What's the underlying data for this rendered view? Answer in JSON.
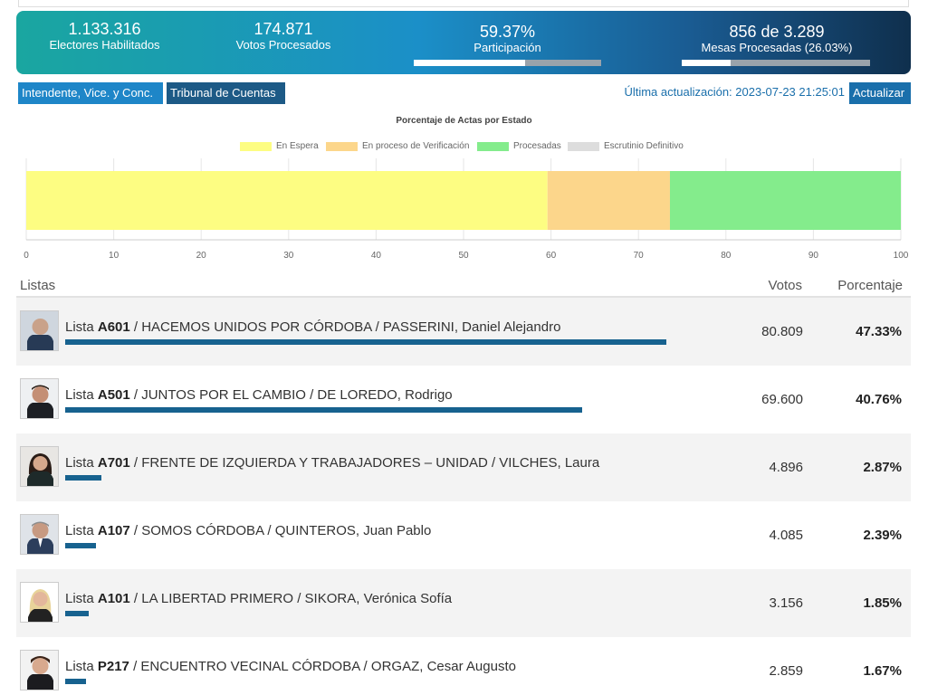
{
  "summary": {
    "electores": {
      "value": "1.133.316",
      "label": "Electores Habilitados"
    },
    "votos": {
      "value": "174.871",
      "label": "Votos Procesados"
    },
    "participacion": {
      "value": "59.37%",
      "label": "Participación",
      "progress": 0.5937
    },
    "mesas": {
      "value": "856 de 3.289",
      "label": "Mesas Procesadas (26.03%)",
      "progress": 0.2603
    }
  },
  "toolbar": {
    "tab_intendente": "Intendente, Vice. y Conc.",
    "tab_tribunal": "Tribunal de Cuentas",
    "updated_text": "Última actualización: 2023-07-23 21:25:01",
    "refresh_label": "Actualizar"
  },
  "chart_data": {
    "type": "bar",
    "orientation": "horizontal-stacked",
    "title": "Porcentaje de Actas por Estado",
    "xlim": [
      0,
      100
    ],
    "ticks": [
      "0",
      "10",
      "20",
      "30",
      "40",
      "50",
      "60",
      "70",
      "80",
      "90",
      "100"
    ],
    "legend_position": "top",
    "series": [
      {
        "name": "En Espera",
        "values": [
          59.6
        ],
        "color": "#fdfd82"
      },
      {
        "name": "En proceso de Verificación",
        "values": [
          14.0
        ],
        "color": "#fcd68b"
      },
      {
        "name": "Procesadas",
        "values": [
          26.4
        ],
        "color": "#84ec8c"
      },
      {
        "name": "Escrutinio Definitivo",
        "values": [
          0
        ],
        "color": "#dddddd"
      }
    ]
  },
  "table": {
    "col_listas": "Listas",
    "col_votos": "Votos",
    "col_porcentaje": "Porcentaje",
    "bar_color": "#17628f",
    "rows": [
      {
        "prefix": "Lista",
        "code": "A601",
        "rest": " / HACEMOS UNIDOS POR CÓRDOBA / PASSERINI, Daniel Alejandro",
        "votos": "80.809",
        "pct": "47.33%",
        "share": 0.4733
      },
      {
        "prefix": "Lista",
        "code": "A501",
        "rest": " / JUNTOS POR EL CAMBIO / DE LOREDO, Rodrigo",
        "votos": "69.600",
        "pct": "40.76%",
        "share": 0.4076
      },
      {
        "prefix": "Lista",
        "code": "A701",
        "rest": " / FRENTE DE IZQUIERDA Y TRABAJADORES – UNIDAD / VILCHES, Laura",
        "votos": "4.896",
        "pct": "2.87%",
        "share": 0.0287
      },
      {
        "prefix": "Lista",
        "code": "A107",
        "rest": " / SOMOS CÓRDOBA / QUINTEROS, Juan Pablo",
        "votos": "4.085",
        "pct": "2.39%",
        "share": 0.0239
      },
      {
        "prefix": "Lista",
        "code": "A101",
        "rest": " / LA LIBERTAD PRIMERO / SIKORA, Verónica Sofía",
        "votos": "3.156",
        "pct": "1.85%",
        "share": 0.0185
      },
      {
        "prefix": "Lista",
        "code": "P217",
        "rest": " / ENCUENTRO VECINAL CÓRDOBA / ORGAZ, Cesar Augusto",
        "votos": "2.859",
        "pct": "1.67%",
        "share": 0.0167
      }
    ]
  }
}
